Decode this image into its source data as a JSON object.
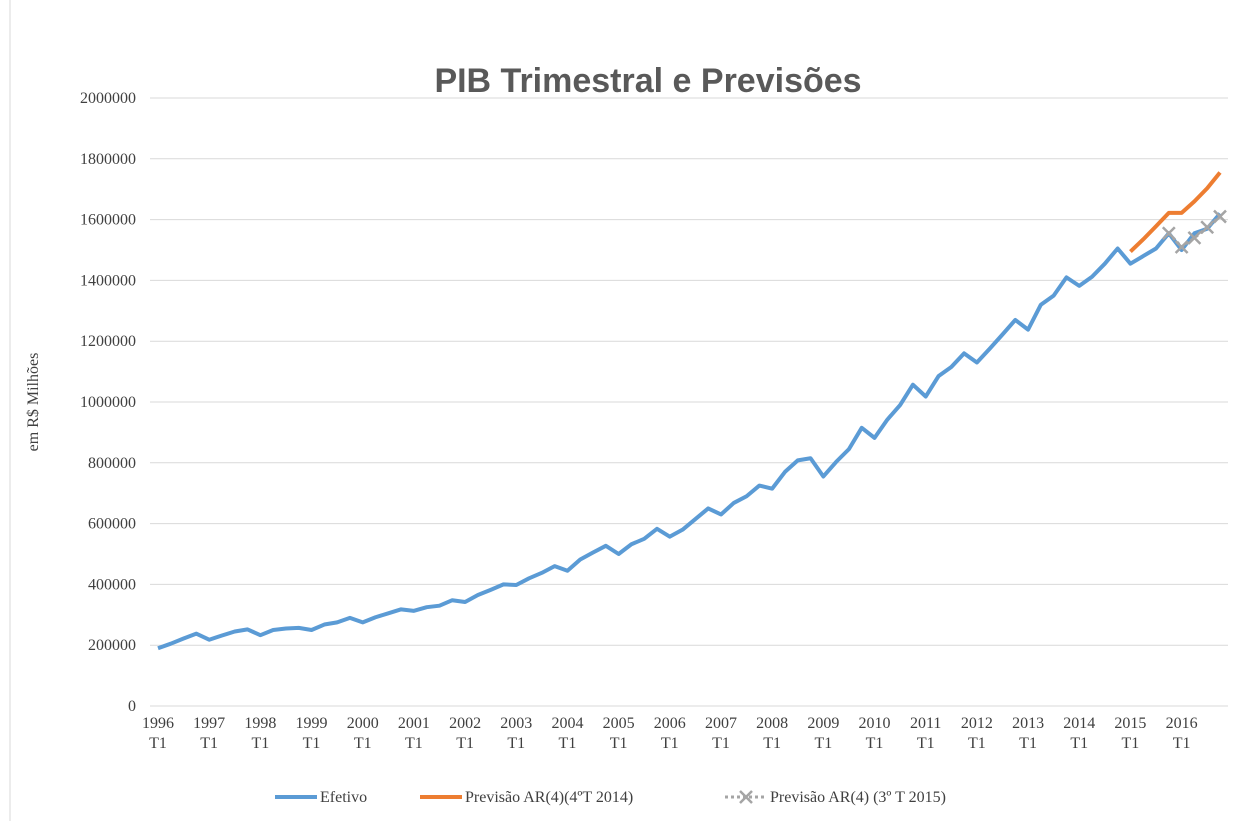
{
  "chart_data": {
    "type": "line",
    "title": "PIB Trimestral e Previsões",
    "y_label": "em R$ Milhões",
    "categories": [
      "1996 T1",
      null,
      null,
      null,
      "1997 T1",
      null,
      null,
      null,
      "1998 T1",
      null,
      null,
      null,
      "1999 T1",
      null,
      null,
      null,
      "2000 T1",
      null,
      null,
      null,
      "2001 T1",
      null,
      null,
      null,
      "2002 T1",
      null,
      null,
      null,
      "2003 T1",
      null,
      null,
      null,
      "2004 T1",
      null,
      null,
      null,
      "2005 T1",
      null,
      null,
      null,
      "2006 T1",
      null,
      null,
      null,
      "2007 T1",
      null,
      null,
      null,
      "2008 T1",
      null,
      null,
      null,
      "2009 T1",
      null,
      null,
      null,
      "2010 T1",
      null,
      null,
      null,
      "2011 T1",
      null,
      null,
      null,
      "2012 T1",
      null,
      null,
      null,
      "2013 T1",
      null,
      null,
      null,
      "2014 T1",
      null,
      null,
      null,
      "2015 T1",
      null,
      null,
      null,
      "2016 T1",
      null,
      null,
      null
    ],
    "series": [
      {
        "name": "Efetivo",
        "color": "#5b9bd5",
        "values": [
          190000,
          205000,
          222000,
          238000,
          218000,
          232000,
          245000,
          252000,
          233000,
          250000,
          255000,
          257000,
          250000,
          268000,
          275000,
          290000,
          275000,
          292000,
          305000,
          318000,
          313000,
          325000,
          330000,
          348000,
          342000,
          365000,
          382000,
          400000,
          398000,
          420000,
          438000,
          460000,
          445000,
          482000,
          505000,
          527000,
          500000,
          532000,
          550000,
          583000,
          557000,
          580000,
          615000,
          650000,
          630000,
          668000,
          690000,
          725000,
          715000,
          770000,
          808000,
          815000,
          755000,
          803000,
          845000,
          915000,
          882000,
          942000,
          990000,
          1057000,
          1018000,
          1085000,
          1115000,
          1160000,
          1130000,
          1175000,
          1222000,
          1270000,
          1238000,
          1320000,
          1350000,
          1410000,
          1382000,
          1412000,
          1455000,
          1505000,
          1455000,
          1480000,
          1505000,
          1555000,
          1500000,
          1555000,
          1570000,
          1620000
        ]
      },
      {
        "name": "Previsão AR(4)(4ºT 2014)",
        "color": "#ed7d31",
        "values": [
          null,
          null,
          null,
          null,
          null,
          null,
          null,
          null,
          null,
          null,
          null,
          null,
          null,
          null,
          null,
          null,
          null,
          null,
          null,
          null,
          null,
          null,
          null,
          null,
          null,
          null,
          null,
          null,
          null,
          null,
          null,
          null,
          null,
          null,
          null,
          null,
          null,
          null,
          null,
          null,
          null,
          null,
          null,
          null,
          null,
          null,
          null,
          null,
          null,
          null,
          null,
          null,
          null,
          null,
          null,
          null,
          null,
          null,
          null,
          null,
          null,
          null,
          null,
          null,
          null,
          null,
          null,
          null,
          null,
          null,
          null,
          null,
          null,
          null,
          null,
          null,
          1495000,
          1535000,
          1578000,
          1622000,
          1622000,
          1660000,
          1703000,
          1755000
        ]
      },
      {
        "name": "Previsão AR(4) (3º T 2015)",
        "color": "#a5a5a5",
        "marker": "x",
        "dashed": true,
        "values": [
          null,
          null,
          null,
          null,
          null,
          null,
          null,
          null,
          null,
          null,
          null,
          null,
          null,
          null,
          null,
          null,
          null,
          null,
          null,
          null,
          null,
          null,
          null,
          null,
          null,
          null,
          null,
          null,
          null,
          null,
          null,
          null,
          null,
          null,
          null,
          null,
          null,
          null,
          null,
          null,
          null,
          null,
          null,
          null,
          null,
          null,
          null,
          null,
          null,
          null,
          null,
          null,
          null,
          null,
          null,
          null,
          null,
          null,
          null,
          null,
          null,
          null,
          null,
          null,
          null,
          null,
          null,
          null,
          null,
          null,
          null,
          null,
          null,
          null,
          null,
          null,
          null,
          null,
          null,
          1555000,
          1510000,
          1540000,
          1575000,
          1610000
        ]
      }
    ],
    "ylim": [
      0,
      2000000
    ],
    "yticks": [
      0,
      200000,
      400000,
      600000,
      800000,
      1000000,
      1200000,
      1400000,
      1600000,
      1800000,
      2000000
    ],
    "grid": true,
    "legend": "bottom"
  }
}
